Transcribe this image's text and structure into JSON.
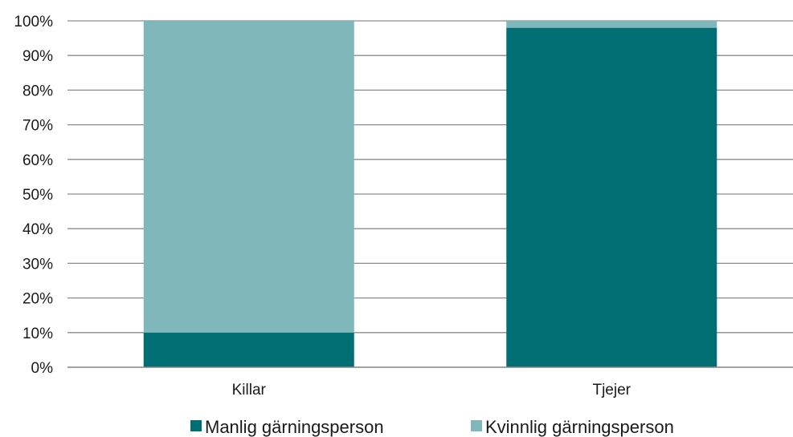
{
  "chart_data": {
    "type": "bar",
    "stacked": true,
    "orientation": "vertical",
    "categories": [
      "Killar",
      "Tjejer"
    ],
    "series": [
      {
        "name": "Manlig gärningsperson",
        "values": [
          10,
          98
        ],
        "color": "#006f74"
      },
      {
        "name": "Kvinnlig gärningsperson",
        "values": [
          90,
          2
        ],
        "color": "#80b7ba"
      }
    ],
    "y_ticks": [
      "0%",
      "10%",
      "20%",
      "30%",
      "40%",
      "50%",
      "60%",
      "70%",
      "80%",
      "90%",
      "100%"
    ],
    "ylim": [
      0,
      100
    ],
    "grid": true,
    "legend_position": "bottom"
  },
  "colors": {
    "grid": "#8c8c8c",
    "axis": "#8c8c8c"
  }
}
